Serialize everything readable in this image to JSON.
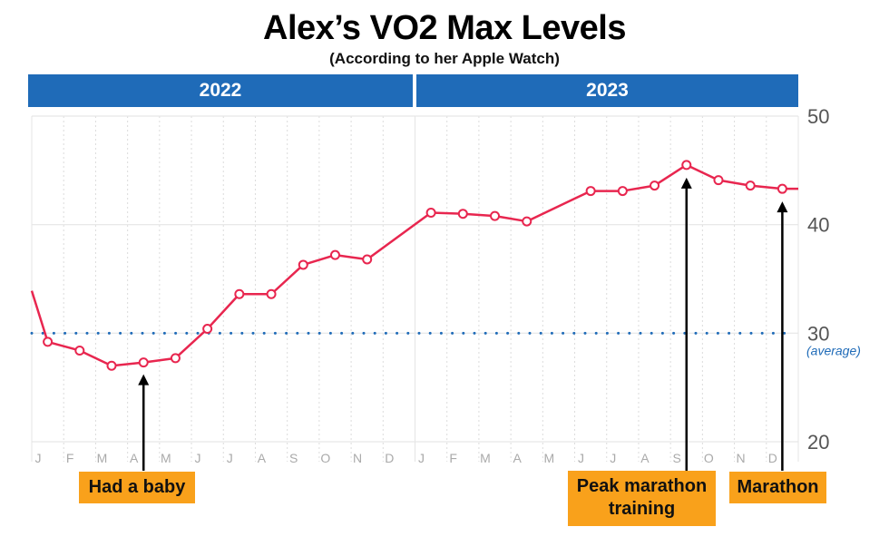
{
  "chart_data": {
    "type": "line",
    "title": "Alex’s VO2 Max Levels",
    "subtitle": "(According to her Apple Watch)",
    "years": [
      "2022",
      "2023"
    ],
    "x_tick_labels": [
      "J",
      "F",
      "M",
      "A",
      "M",
      "J",
      "J",
      "A",
      "S",
      "O",
      "N",
      "D",
      "J",
      "F",
      "M",
      "A",
      "M",
      "J",
      "J",
      "A",
      "S",
      "O",
      "N",
      "D"
    ],
    "ylim": [
      20,
      50
    ],
    "y_ticks": [
      20,
      30,
      40,
      50
    ],
    "grid": true,
    "series": [
      {
        "color": "#e8264f",
        "points": [
          {
            "x": "2022-01-01",
            "y": 33.9,
            "marker": false
          },
          {
            "x": "2022-01-15",
            "y": 29.2
          },
          {
            "x": "2022-02-15",
            "y": 28.4
          },
          {
            "x": "2022-03-15",
            "y": 27.0
          },
          {
            "x": "2022-04-15",
            "y": 27.3
          },
          {
            "x": "2022-05-15",
            "y": 27.7
          },
          {
            "x": "2022-06-15",
            "y": 30.4
          },
          {
            "x": "2022-07-15",
            "y": 33.6
          },
          {
            "x": "2022-08-15",
            "y": 33.6
          },
          {
            "x": "2022-09-15",
            "y": 36.3
          },
          {
            "x": "2022-10-15",
            "y": 37.2
          },
          {
            "x": "2022-11-15",
            "y": 36.8
          },
          {
            "x": "2023-01-15",
            "y": 41.1
          },
          {
            "x": "2023-02-15",
            "y": 41.0
          },
          {
            "x": "2023-03-15",
            "y": 40.8
          },
          {
            "x": "2023-04-15",
            "y": 40.3
          },
          {
            "x": "2023-06-15",
            "y": 43.1
          },
          {
            "x": "2023-07-15",
            "y": 43.1
          },
          {
            "x": "2023-08-15",
            "y": 43.6
          },
          {
            "x": "2023-09-15",
            "y": 45.5
          },
          {
            "x": "2023-10-15",
            "y": 44.1
          },
          {
            "x": "2023-11-15",
            "y": 43.6
          },
          {
            "x": "2023-12-15",
            "y": 43.3
          },
          {
            "x": "2023-12-31",
            "y": 43.3,
            "marker": false
          }
        ]
      }
    ],
    "reference_line": {
      "y": 30,
      "label": "(average)",
      "color": "#1f6bb8",
      "style": "dotted"
    },
    "annotations": [
      {
        "text": "Had a baby",
        "x": "2022-04-15"
      },
      {
        "text": "Peak marathon training",
        "x": "2023-09-15"
      },
      {
        "text": "Marathon",
        "x": "2023-12-15"
      }
    ],
    "colors": {
      "year_bar": "#1f6bb8",
      "annotation_box": "#f9a11b",
      "line": "#e8264f"
    }
  }
}
